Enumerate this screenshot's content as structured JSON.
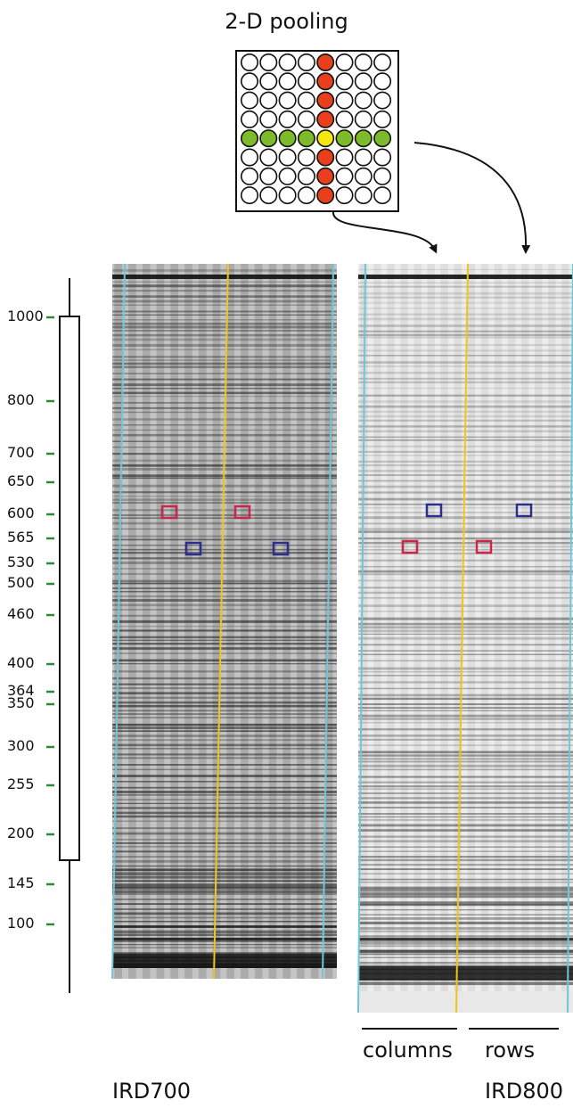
{
  "title": "2-D pooling",
  "pool_grid": {
    "rows": 8,
    "cols": 8,
    "highlight_row": 4,
    "highlight_col": 4,
    "colors": {
      "empty": "#ffffff",
      "column": "#e8401c",
      "row": "#7dbb2a",
      "intersection": "#f4e60f",
      "outline": "#111111"
    }
  },
  "ladder": {
    "sizes": [
      "1000",
      "800",
      "700",
      "650",
      "600",
      "565",
      "530",
      "500",
      "460",
      "400",
      "364",
      "350",
      "300",
      "255",
      "200",
      "145",
      "100"
    ],
    "tick_color": "#2a8a3a"
  },
  "gels": [
    {
      "id": "ird700",
      "label": "IRD700",
      "style": "dark"
    },
    {
      "id": "ird800",
      "label": "IRD800",
      "style": "light"
    }
  ],
  "bottom_labels": {
    "columns": "columns",
    "rows": "rows"
  },
  "marker_colors": {
    "red": "#c8264a",
    "blue": "#2b2e8a",
    "lane_cyan": "#6cc8d8",
    "lane_yellow": "#f0c419"
  }
}
